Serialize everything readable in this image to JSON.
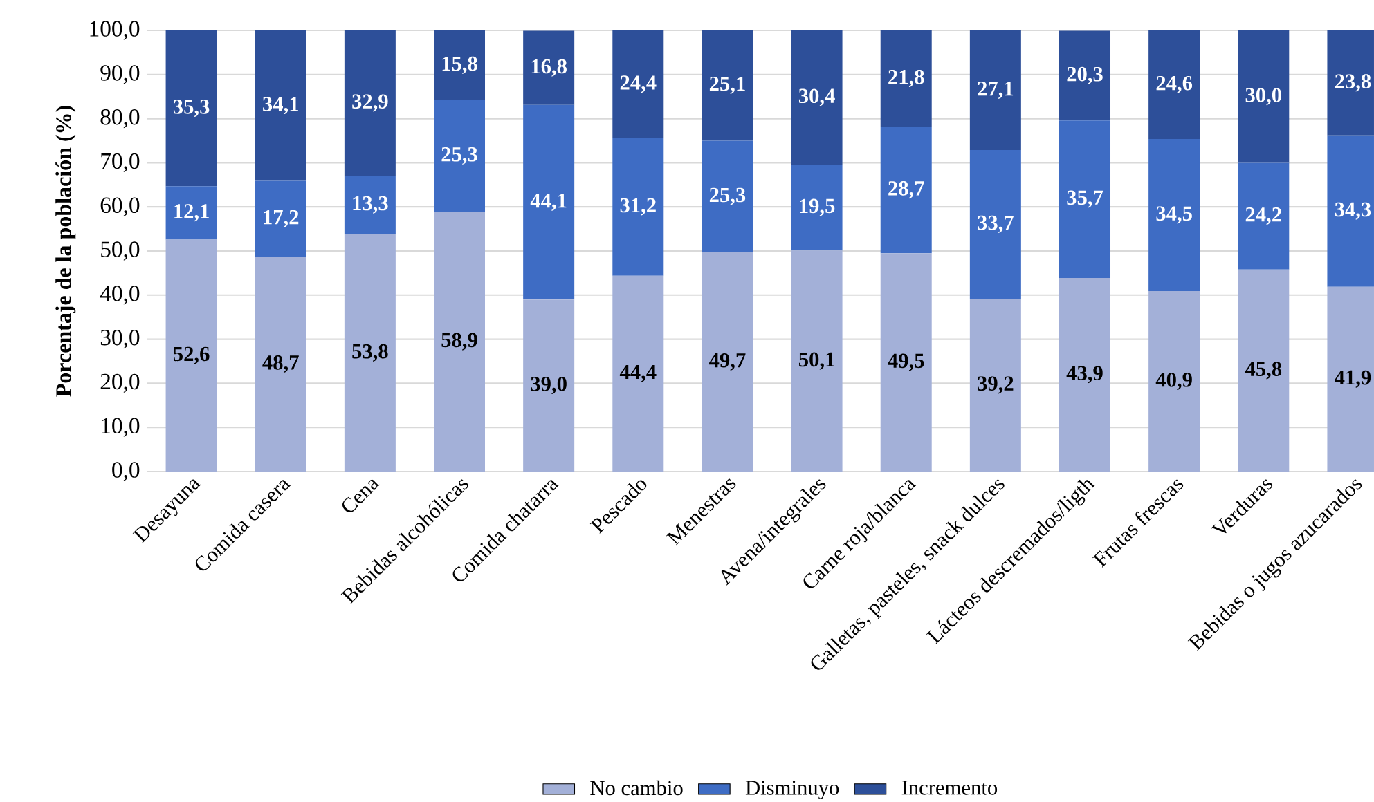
{
  "chart_data": {
    "type": "bar",
    "stacked": true,
    "ylabel": "Porcentaje de la población (%)",
    "categories": [
      "Desayuna",
      "Comida casera",
      "Cena",
      "Bebidas alcohólicas",
      "Comida chatarra",
      "Pescado",
      "Menestras",
      "Avena/integrales",
      "Carne roja/blanca",
      "Galletas, pasteles, snack dulces",
      "Lácteos descremados/ligth",
      "Frutas frescas",
      "Verduras",
      "Bebidas o jugos azucarados"
    ],
    "series": [
      {
        "name": "No cambio",
        "color": "#a3b0d8",
        "values": [
          52.6,
          48.7,
          53.8,
          58.9,
          39.0,
          44.4,
          49.7,
          50.1,
          49.5,
          39.2,
          43.9,
          40.9,
          45.8,
          41.9
        ],
        "value_labels": [
          "52,6",
          "48,7",
          "53,8",
          "58,9",
          "39,0",
          "44,4",
          "49,7",
          "50,1",
          "49,5",
          "39,2",
          "43,9",
          "40,9",
          "45,8",
          "41,9"
        ]
      },
      {
        "name": "Disminuyo",
        "color": "#3e6cc4",
        "values": [
          12.1,
          17.2,
          13.3,
          25.3,
          44.1,
          31.2,
          25.3,
          19.5,
          28.7,
          33.7,
          35.7,
          34.5,
          24.2,
          34.3
        ],
        "value_labels": [
          "12,1",
          "17,2",
          "13,3",
          "25,3",
          "44,1",
          "31,2",
          "25,3",
          "19,5",
          "28,7",
          "33,7",
          "35,7",
          "34,5",
          "24,2",
          "34,3"
        ]
      },
      {
        "name": "Incremento",
        "color": "#2d4f99",
        "values": [
          35.3,
          34.1,
          32.9,
          15.8,
          16.8,
          24.4,
          25.1,
          30.4,
          21.8,
          27.1,
          20.3,
          24.6,
          30.0,
          23.8
        ],
        "value_labels": [
          "35,3",
          "34,1",
          "32,9",
          "15,8",
          "16,8",
          "24,4",
          "25,1",
          "30,4",
          "21,8",
          "27,1",
          "20,3",
          "24,6",
          "30,0",
          "23,8"
        ]
      }
    ],
    "ylim": [
      0,
      100
    ],
    "yticks": [
      {
        "value": 0,
        "label": "0,0"
      },
      {
        "value": 10,
        "label": "10,0"
      },
      {
        "value": 20,
        "label": "20,0"
      },
      {
        "value": 30,
        "label": "30,0"
      },
      {
        "value": 40,
        "label": "40,0"
      },
      {
        "value": 50,
        "label": "50,0"
      },
      {
        "value": 60,
        "label": "60,0"
      },
      {
        "value": 70,
        "label": "70,0"
      },
      {
        "value": 80,
        "label": "80,0"
      },
      {
        "value": 90,
        "label": "90,0"
      },
      {
        "value": 100,
        "label": "100,0"
      }
    ],
    "grid": "y",
    "legend": "bottom"
  }
}
